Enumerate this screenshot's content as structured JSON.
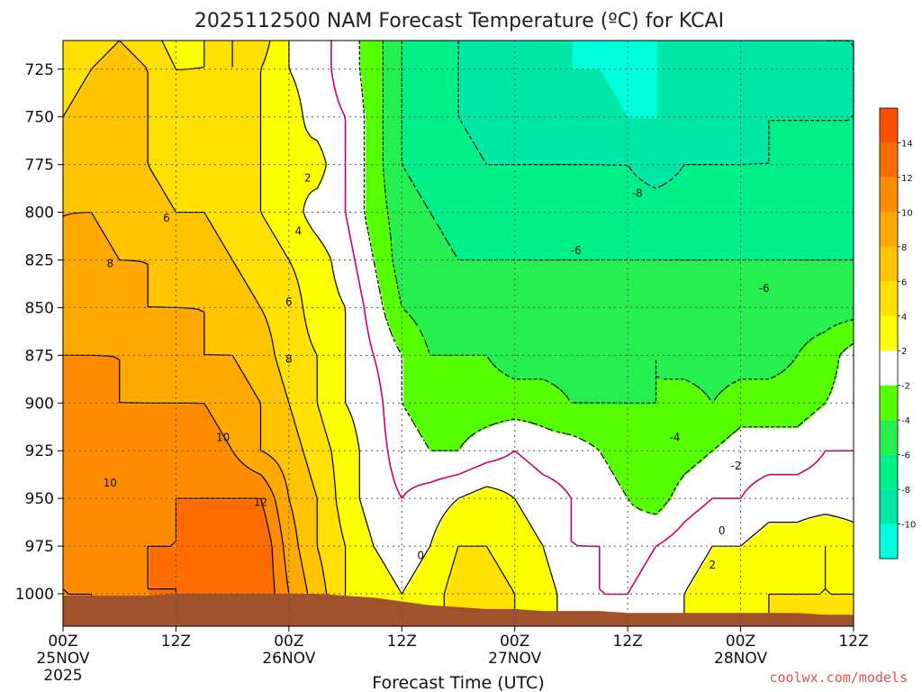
{
  "chart_data": {
    "type": "heatmap",
    "title": "2025112500 NAM Forecast Temperature (ºC) for KCAI",
    "xlabel": "Forecast Time (UTC)",
    "ylabel": "",
    "credit": "coolwx.com/models",
    "x_axis": {
      "hours": [
        0,
        12,
        24,
        36,
        48,
        60,
        72,
        84
      ],
      "tick_labels": [
        {
          "line1": "00Z",
          "line2": "25NOV",
          "line3": "2025"
        },
        {
          "line1": "12Z",
          "line2": "",
          "line3": ""
        },
        {
          "line1": "00Z",
          "line2": "26NOV",
          "line3": ""
        },
        {
          "line1": "12Z",
          "line2": "",
          "line3": ""
        },
        {
          "line1": "00Z",
          "line2": "27NOV",
          "line3": ""
        },
        {
          "line1": "12Z",
          "line2": "",
          "line3": ""
        },
        {
          "line1": "00Z",
          "line2": "28NOV",
          "line3": ""
        },
        {
          "line1": "12Z",
          "line2": "",
          "line3": ""
        }
      ],
      "range_hours": [
        0,
        84
      ]
    },
    "y_axis": {
      "unit": "hPa",
      "ticks": [
        725,
        750,
        775,
        800,
        825,
        850,
        875,
        900,
        925,
        950,
        975,
        1000
      ],
      "range": [
        710,
        1017
      ],
      "grid": true
    },
    "colorbar": {
      "levels": [
        -12,
        -10,
        -8,
        -6,
        -4,
        -2,
        2,
        4,
        6,
        8,
        10,
        12,
        14,
        16
      ],
      "colors": [
        "#00ffdd",
        "#00e8a8",
        "#00f08a",
        "#26f050",
        "#55ff00",
        "#ffffff",
        "#ffff00",
        "#ffe000",
        "#ffc400",
        "#ffa800",
        "#ff8c00",
        "#ff6c00",
        "#ff5000"
      ],
      "tick_labels": [
        "-10",
        "-8",
        "-6",
        "-4",
        "-2",
        "2",
        "4",
        "6",
        "8",
        "10",
        "12",
        "14"
      ]
    },
    "ground_color": "#a0522d",
    "freezing_line_color": "#cc0066",
    "grid_hours": [
      0,
      3,
      6,
      9,
      12,
      15,
      18,
      21,
      24,
      27,
      30,
      33,
      36,
      39,
      42,
      45,
      48,
      51,
      54,
      57,
      60,
      63,
      66,
      69,
      72,
      75,
      78,
      81,
      84
    ],
    "grid_pressures": [
      710,
      725,
      750,
      775,
      800,
      825,
      850,
      875,
      900,
      925,
      950,
      975,
      1000,
      1015
    ],
    "surface_pressure": [
      1001,
      1001,
      1001,
      1001,
      1000,
      1000,
      1000,
      1000,
      1000,
      1000,
      1001,
      1002,
      1004,
      1006,
      1007,
      1008,
      1008,
      1009,
      1009,
      1009,
      1010,
      1010,
      1010,
      1010,
      1010,
      1010,
      1010,
      1011,
      1011
    ],
    "temperature_rows": [
      [
        4,
        5,
        6,
        5,
        3,
        4,
        6,
        5,
        2,
        1,
        -1,
        -3,
        -6,
        -7,
        -8,
        -9,
        -9,
        -10,
        -10,
        -11,
        -11,
        -10,
        -10,
        -10,
        -9,
        -9,
        -9,
        -8,
        -8
      ],
      [
        5,
        6,
        7,
        6,
        4,
        4,
        6,
        4,
        2,
        1,
        -1,
        -3,
        -6,
        -7,
        -8,
        -9,
        -9,
        -10,
        -10,
        -10,
        -11,
        -10,
        -10,
        -10,
        -9,
        -9,
        -9,
        -9,
        -8
      ],
      [
        6,
        7,
        7,
        6,
        5,
        5,
        5,
        4,
        3,
        1,
        0,
        -3,
        -6,
        -7,
        -8,
        -9,
        -9,
        -9,
        -9,
        -9,
        -10,
        -10,
        -9,
        -9,
        -9,
        -8,
        -8,
        -8,
        -8
      ],
      [
        7,
        7,
        7,
        6,
        5,
        5,
        5,
        4,
        2,
        3,
        0,
        -3,
        -6,
        -7,
        -7,
        -8,
        -8,
        -8,
        -8,
        -8,
        -8,
        -9,
        -8,
        -8,
        -8,
        -8,
        -8,
        -8,
        -8
      ],
      [
        8,
        8,
        7,
        7,
        6,
        6,
        5,
        4,
        3,
        1,
        0,
        -3,
        -5,
        -6,
        -7,
        -7,
        -7,
        -7,
        -7,
        -7,
        -7,
        -7,
        -7,
        -7,
        -7,
        -7,
        -7,
        -7,
        -7
      ],
      [
        8,
        9,
        8,
        8,
        7,
        7,
        6,
        5,
        4,
        3,
        1,
        -2,
        -5,
        -5,
        -6,
        -6,
        -6,
        -6,
        -6,
        -6,
        -6,
        -6,
        -6,
        -6,
        -6,
        -6,
        -6,
        -6,
        -6
      ],
      [
        9,
        9,
        9,
        8,
        8,
        8,
        7,
        6,
        5,
        3,
        2,
        -1,
        -4,
        -5,
        -5,
        -5,
        -5,
        -5,
        -5,
        -5,
        -5,
        -5,
        -5,
        -5,
        -5,
        -5,
        -5,
        -5,
        -5
      ],
      [
        10,
        10,
        10,
        9,
        9,
        8,
        8,
        7,
        5,
        4,
        2,
        0,
        -2,
        -4,
        -4,
        -4,
        -5,
        -5,
        -5,
        -5,
        -5,
        -4,
        -5,
        -5,
        -5,
        -5,
        -4,
        -3,
        -1
      ],
      [
        11,
        11,
        10,
        10,
        10,
        10,
        9,
        8,
        6,
        4,
        2,
        1,
        -2,
        -3,
        -3,
        -3,
        -3,
        -3,
        -4,
        -4,
        -4,
        -4,
        -3,
        -4,
        -3,
        -3,
        -3,
        -2,
        -1
      ],
      [
        12,
        11,
        11,
        11,
        11,
        11,
        10,
        8,
        7,
        5,
        3,
        1,
        -1,
        -2,
        -2,
        -1,
        0,
        -1,
        -1,
        -2,
        -3,
        -4,
        -3,
        -2,
        -1,
        -1,
        -1,
        0,
        0
      ],
      [
        11,
        11,
        11,
        11,
        12,
        12,
        12,
        12,
        8,
        6,
        3,
        1,
        0,
        1,
        2,
        3,
        2,
        1,
        0,
        -1,
        -2,
        -3,
        -1,
        0,
        0,
        1,
        1,
        1,
        1
      ],
      [
        10,
        11,
        11,
        12,
        12,
        13,
        13,
        14,
        9,
        6,
        4,
        2,
        1,
        2,
        4,
        4,
        3,
        2,
        0,
        0,
        -1,
        0,
        1,
        2,
        2,
        3,
        3,
        4,
        3
      ],
      [
        10,
        10,
        11,
        12,
        12,
        13,
        14,
        14,
        10,
        7,
        4,
        3,
        2,
        3,
        5,
        5,
        4,
        3,
        1,
        0,
        0,
        1,
        2,
        3,
        3,
        4,
        4,
        4,
        4
      ],
      [
        10,
        10,
        11,
        12,
        12,
        13,
        14,
        14,
        10,
        7,
        4,
        3,
        2,
        3,
        5,
        5,
        4,
        3,
        1,
        0,
        0,
        1,
        2,
        3,
        3,
        4,
        4,
        4,
        4
      ]
    ],
    "contour_labels": [
      {
        "text": "2",
        "hour": 26.0,
        "p": 782
      },
      {
        "text": "4",
        "hour": 25.0,
        "p": 810
      },
      {
        "text": "6",
        "hour": 11.0,
        "p": 803
      },
      {
        "text": "6",
        "hour": 24.0,
        "p": 847
      },
      {
        "text": "8",
        "hour": 5.0,
        "p": 827
      },
      {
        "text": "8",
        "hour": 24.0,
        "p": 877
      },
      {
        "text": "10",
        "hour": 17.0,
        "p": 918
      },
      {
        "text": "10",
        "hour": 5.0,
        "p": 942
      },
      {
        "text": "12",
        "hour": 21.0,
        "p": 952
      },
      {
        "text": "0",
        "hour": 38.0,
        "p": 980
      },
      {
        "text": "-8",
        "hour": 61.0,
        "p": 790
      },
      {
        "text": "-6",
        "hour": 54.5,
        "p": 820
      },
      {
        "text": "-6",
        "hour": 74.5,
        "p": 840
      },
      {
        "text": "-4",
        "hour": 65.0,
        "p": 918
      },
      {
        "text": "-2",
        "hour": 71.5,
        "p": 933
      },
      {
        "text": "0",
        "hour": 70.0,
        "p": 967
      },
      {
        "text": "2",
        "hour": 69.0,
        "p": 985
      }
    ]
  }
}
